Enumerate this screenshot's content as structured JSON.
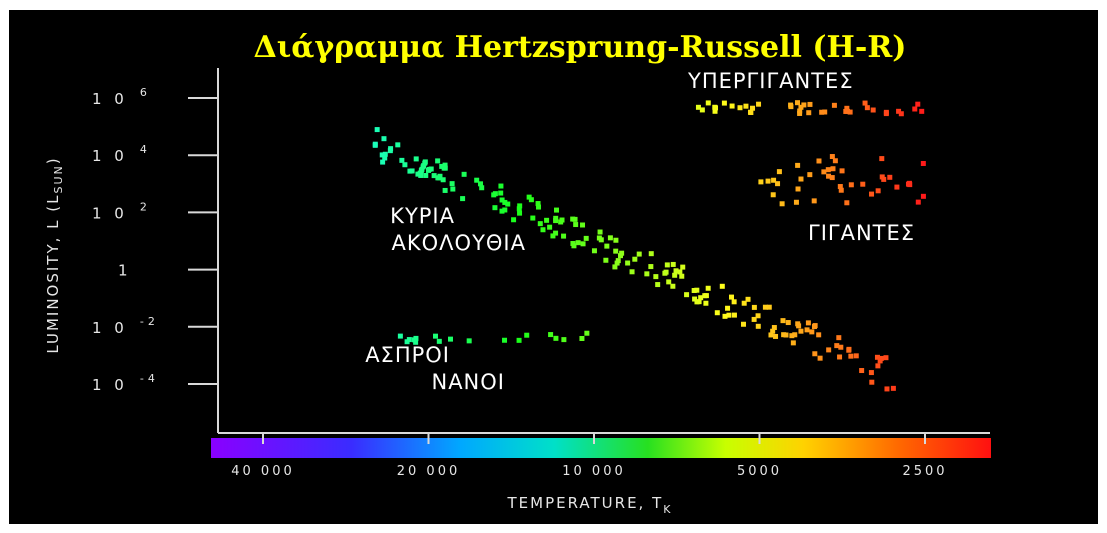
{
  "chart_data": {
    "type": "scatter",
    "title": "Διάγραμμα Hertzsprung-Russell (H-R)",
    "xlabel": "TEMPERATURE, T",
    "xlabel_sub": "K",
    "ylabel": "LUMINOSITY, L (L",
    "ylabel_sub": "SUN",
    "ylabel_close": ")",
    "x_scale": "log, reversed",
    "y_scale": "log",
    "xlim": [
      40000,
      2500
    ],
    "ylim": [
      0.0001,
      1000000
    ],
    "x_ticks": [
      {
        "value": 40000,
        "label": "40 000"
      },
      {
        "value": 20000,
        "label": "20 000"
      },
      {
        "value": 10000,
        "label": "10 000"
      },
      {
        "value": 5000,
        "label": "5000"
      },
      {
        "value": 2500,
        "label": "2500"
      }
    ],
    "y_ticks": [
      {
        "value": 1000000,
        "base": "10",
        "exp": "6"
      },
      {
        "value": 10000,
        "base": "10",
        "exp": "4"
      },
      {
        "value": 100,
        "base": "10",
        "exp": "2"
      },
      {
        "value": 1,
        "base": "1",
        "exp": ""
      },
      {
        "value": 0.01,
        "base": "10",
        "exp": "-2"
      },
      {
        "value": 0.0001,
        "base": "10",
        "exp": "-4"
      }
    ],
    "color_bar": "temperature spectrum: violet (hot) to red (cool)",
    "regions": [
      {
        "label_lines": [
          "ΥΠΕΡΓΙΓΑΝΤΕΣ"
        ],
        "temp_range": [
          6500,
          2500
        ],
        "lum_range": [
          10000,
          1000000
        ]
      },
      {
        "label_lines": [
          "ΓΙΓΑΝΤΕΣ"
        ],
        "temp_range": [
          5000,
          2500
        ],
        "lum_range": [
          100,
          10000
        ]
      },
      {
        "label_lines": [
          "ΚΥΡΙΑ",
          "ΑΚΟΛΟΥΘΙΑ"
        ],
        "temp_range": [
          25000,
          2800
        ],
        "lum_range": [
          0.0001,
          100000
        ]
      },
      {
        "label_lines": [
          "ΑΣΠΡΟΙ",
          "ΝΑΝΟΙ"
        ],
        "temp_range": [
          25000,
          10000
        ],
        "lum_range": [
          0.001,
          0.01
        ]
      }
    ]
  }
}
